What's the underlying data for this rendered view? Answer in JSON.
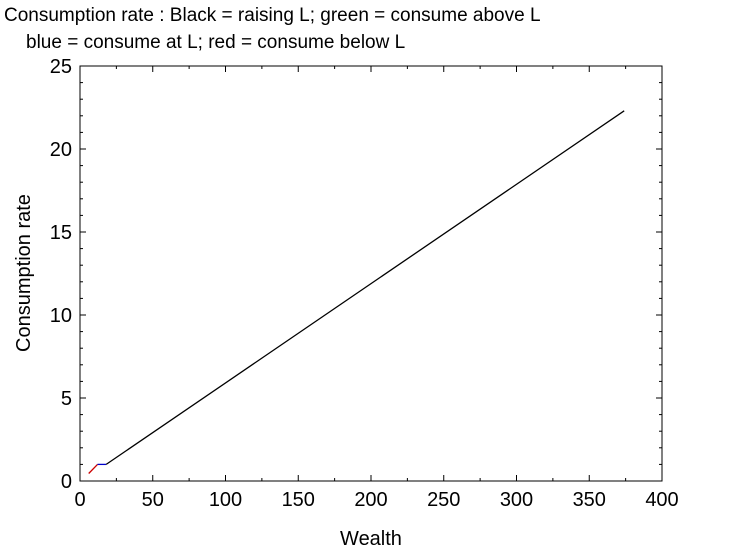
{
  "chart_data": {
    "type": "line",
    "title": "Consumption rate : Black = raising L; green = consume above L",
    "subtitle": "blue = consume at L; red = consume below L",
    "xlabel": "Wealth",
    "ylabel": "Consumption rate",
    "xlim": [
      0,
      400
    ],
    "ylim": [
      0,
      25
    ],
    "x_ticks": [
      0,
      50,
      100,
      150,
      200,
      250,
      300,
      350,
      400
    ],
    "y_ticks": [
      0,
      5,
      10,
      15,
      20,
      25
    ],
    "grid": false,
    "series": [
      {
        "color": "#cc0000",
        "points": [
          [
            6,
            0.45
          ],
          [
            12,
            1.0
          ]
        ]
      },
      {
        "color": "#0000cc",
        "points": [
          [
            12,
            1.0
          ],
          [
            18,
            1.0
          ]
        ]
      },
      {
        "color": "#000000",
        "points": [
          [
            18,
            1.0
          ],
          [
            374,
            22.3
          ]
        ]
      }
    ]
  }
}
